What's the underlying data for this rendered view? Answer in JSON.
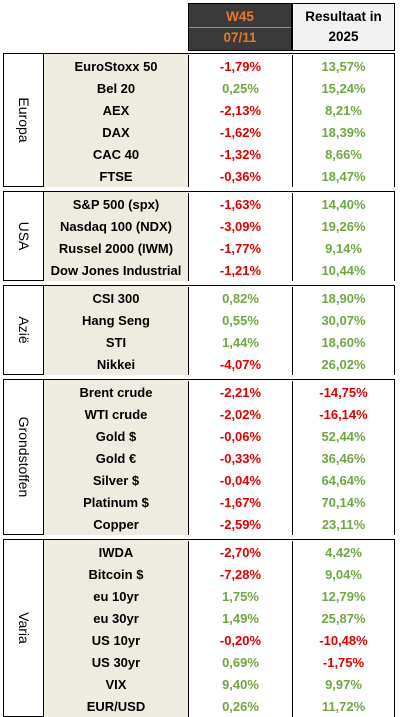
{
  "header": {
    "week_line1": "W45",
    "week_line2": "07/11",
    "result_line1": "Resultaat in",
    "result_line2": "2025"
  },
  "colors": {
    "negative": "#e00000",
    "positive": "#6fa842",
    "header_bg": "#3a3a3a",
    "header_accent": "#e6782b",
    "name_bg": "#eeece1"
  },
  "groups": [
    {
      "label": "Europa",
      "rows": [
        {
          "name": "EuroStoxx 50",
          "week": "-1,79%",
          "year": "13,57%"
        },
        {
          "name": "Bel 20",
          "week": "0,25%",
          "year": "15,24%"
        },
        {
          "name": "AEX",
          "week": "-2,13%",
          "year": "8,21%"
        },
        {
          "name": "DAX",
          "week": "-1,62%",
          "year": "18,39%"
        },
        {
          "name": "CAC 40",
          "week": "-1,32%",
          "year": "8,66%"
        },
        {
          "name": "FTSE",
          "week": "-0,36%",
          "year": "18,47%"
        }
      ]
    },
    {
      "label": "USA",
      "rows": [
        {
          "name": "S&P 500 (spx)",
          "week": "-1,63%",
          "year": "14,40%"
        },
        {
          "name": "Nasdaq 100 (NDX)",
          "week": "-3,09%",
          "year": "19,26%"
        },
        {
          "name": "Russel 2000 (IWM)",
          "week": "-1,77%",
          "year": "9,14%"
        },
        {
          "name": "Dow Jones Industrial",
          "week": "-1,21%",
          "year": "10,44%"
        }
      ]
    },
    {
      "label": "Azië",
      "rows": [
        {
          "name": "CSI 300",
          "week": "0,82%",
          "year": "18,90%"
        },
        {
          "name": "Hang Seng",
          "week": "0,55%",
          "year": "30,07%"
        },
        {
          "name": "STI",
          "week": "1,44%",
          "year": "18,60%"
        },
        {
          "name": "Nikkei",
          "week": "-4,07%",
          "year": "26,02%"
        }
      ]
    },
    {
      "label": "Grondstoffen",
      "rows": [
        {
          "name": "Brent crude",
          "week": "-2,21%",
          "year": "-14,75%"
        },
        {
          "name": "WTI crude",
          "week": "-2,02%",
          "year": "-16,14%"
        },
        {
          "name": "Gold $",
          "week": "-0,06%",
          "year": "52,44%"
        },
        {
          "name": "Gold €",
          "week": "-0,33%",
          "year": "36,46%"
        },
        {
          "name": "Silver $",
          "week": "-0,04%",
          "year": "64,64%"
        },
        {
          "name": "Platinum $",
          "week": "-1,67%",
          "year": "70,14%"
        },
        {
          "name": "Copper",
          "week": "-2,59%",
          "year": "23,11%"
        }
      ]
    },
    {
      "label": "Varia",
      "rows": [
        {
          "name": "IWDA",
          "week": "-2,70%",
          "year": "4,42%"
        },
        {
          "name": "Bitcoin $",
          "week": "-7,28%",
          "year": "9,04%"
        },
        {
          "name": "eu 10yr",
          "week": "1,75%",
          "year": "12,79%"
        },
        {
          "name": "eu 30yr",
          "week": "1,49%",
          "year": "25,87%"
        },
        {
          "name": "US 10yr",
          "week": "-0,20%",
          "year": "-10,48%"
        },
        {
          "name": "US 30yr",
          "week": "0,69%",
          "year": "-1,75%"
        },
        {
          "name": "VIX",
          "week": "9,40%",
          "year": "9,97%"
        },
        {
          "name": "EUR/USD",
          "week": "0,26%",
          "year": "11,72%"
        }
      ]
    }
  ]
}
